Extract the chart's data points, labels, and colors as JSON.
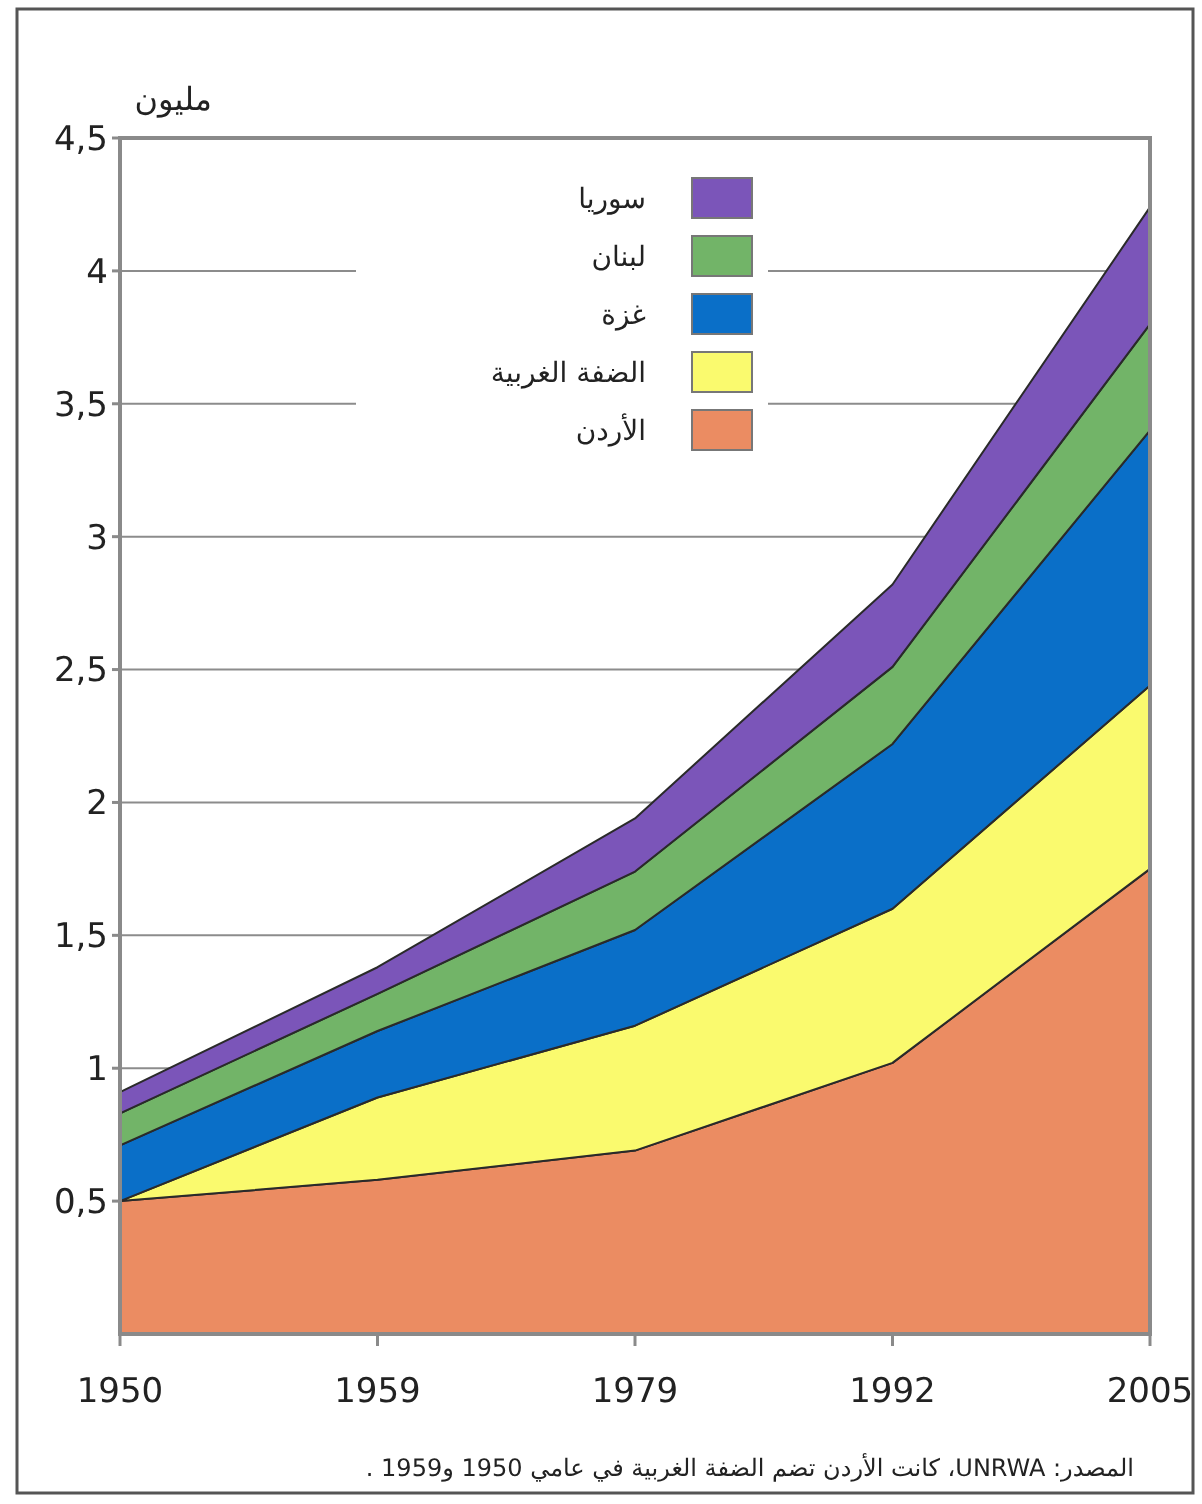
{
  "chart_data": {
    "type": "area",
    "stacked": true,
    "ylabel": "مليون",
    "categories": [
      "1950",
      "1959",
      "1979",
      "1992",
      "2005"
    ],
    "series": [
      {
        "name": "الأردن",
        "color": "#eb8c62",
        "values": [
          0.5,
          0.58,
          0.69,
          1.02,
          1.75
        ]
      },
      {
        "name": "الضفة الغربية",
        "color": "#fafa6e",
        "values": [
          0,
          0.31,
          0.47,
          0.58,
          0.69
        ]
      },
      {
        "name": "غزة",
        "color": "#0a6fc8",
        "values": [
          0.21,
          0.25,
          0.36,
          0.62,
          0.96
        ]
      },
      {
        "name": "لبنان",
        "color": "#72b468",
        "values": [
          0.12,
          0.14,
          0.22,
          0.29,
          0.4
        ]
      },
      {
        "name": "سوريا",
        "color": "#7b55b9",
        "values": [
          0.08,
          0.1,
          0.2,
          0.31,
          0.44
        ]
      }
    ],
    "ylim": [
      0,
      4.5
    ],
    "yticks": [
      {
        "value": 0.5,
        "label": "0,5"
      },
      1,
      {
        "value": 1.5,
        "label": "1,5"
      },
      2,
      {
        "value": 2.5,
        "label": "2,5"
      },
      3,
      {
        "value": 3.5,
        "label": "3,5"
      },
      4,
      {
        "value": 4.5,
        "label": "4,5"
      }
    ],
    "grid": "y",
    "legend": "top left",
    "annotations": [
      "المصدر: UNRWA، كانت الأردن تضم الضفة الغربية في عامي 1950 و1959 ."
    ]
  }
}
